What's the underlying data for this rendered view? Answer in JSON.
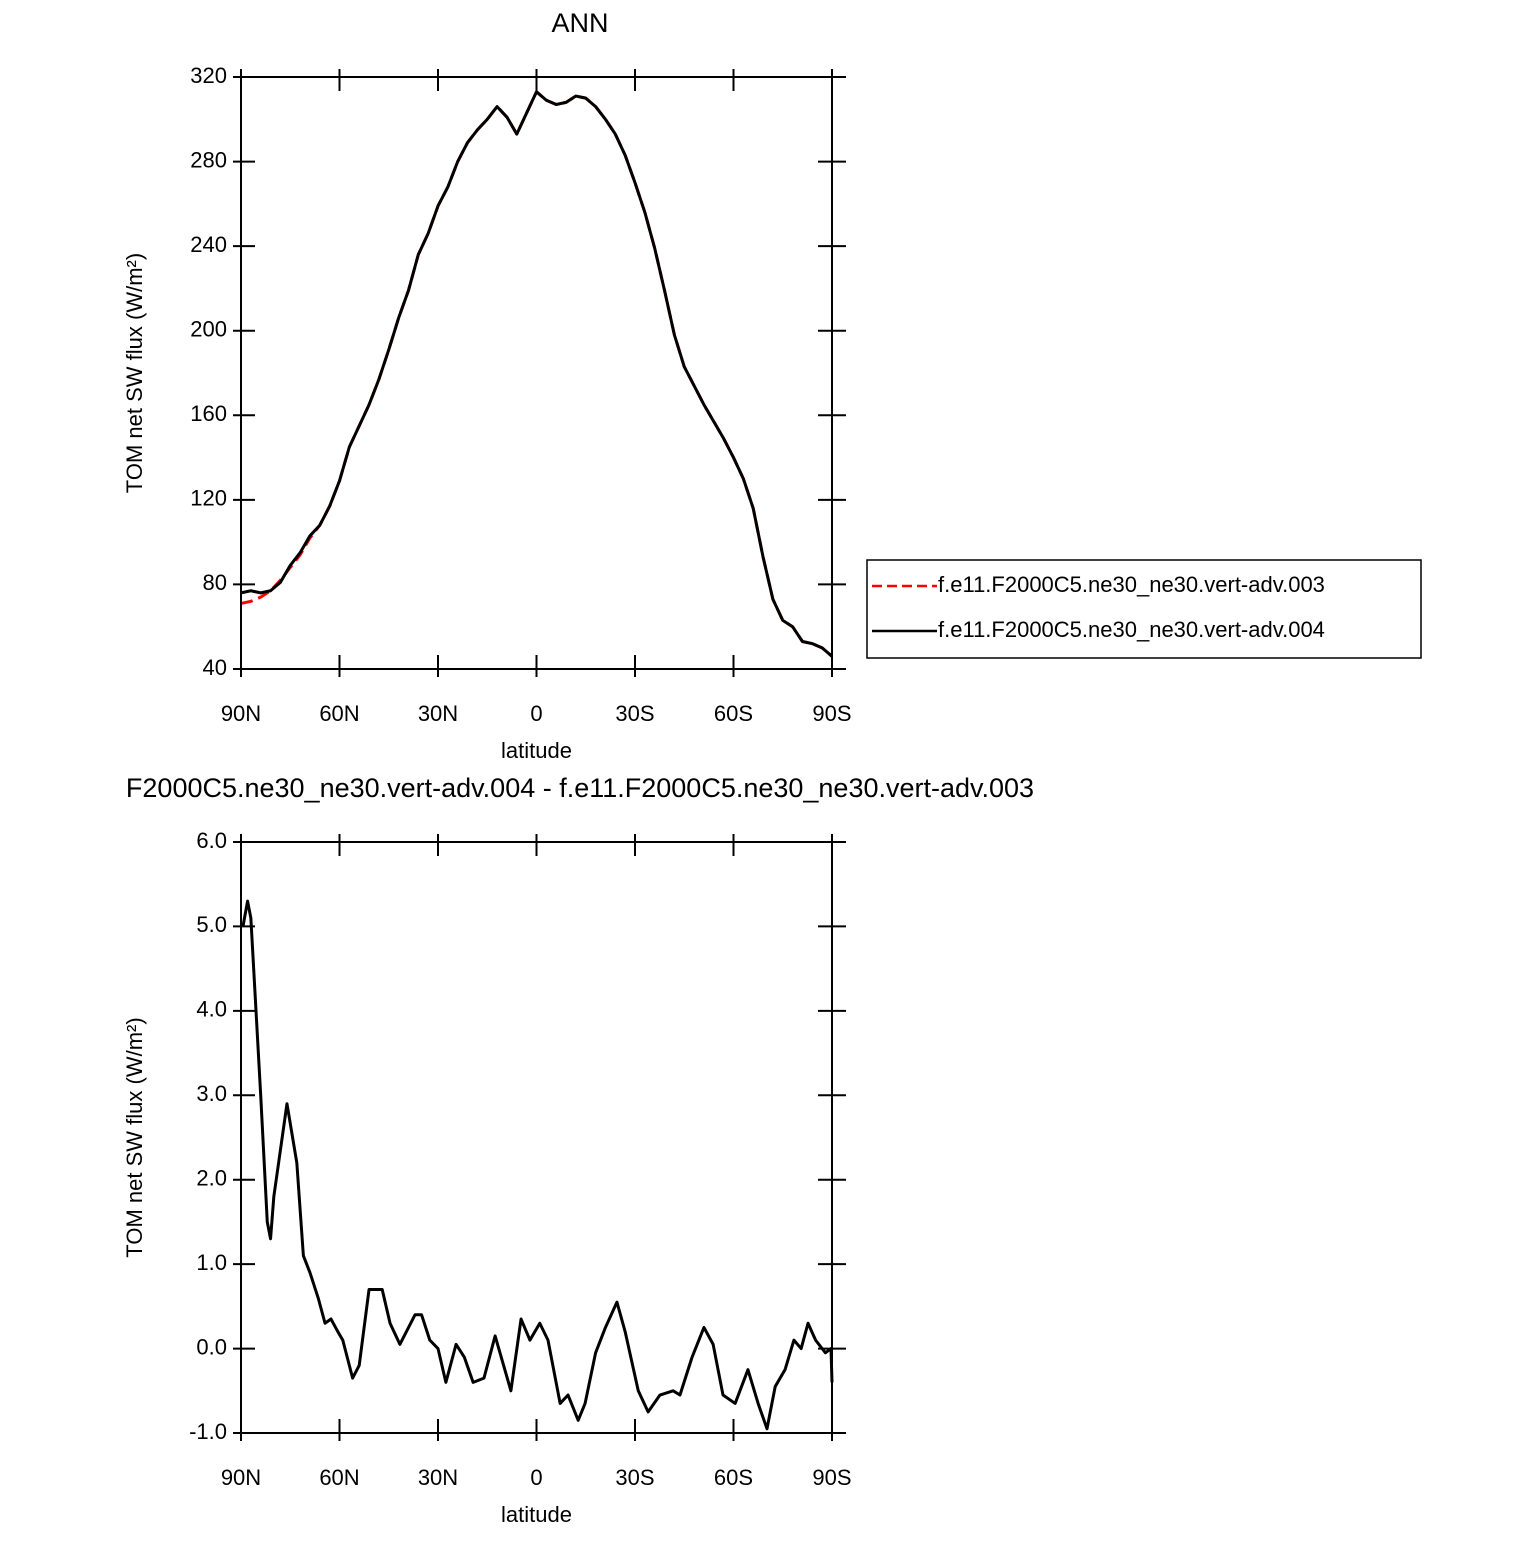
{
  "chart_data": [
    {
      "type": "line",
      "title": "ANN",
      "xlabel": "latitude",
      "ylabel": "TOM net SW flux (W/m²)",
      "x": [
        90,
        87,
        84,
        81,
        78,
        75,
        72,
        69,
        66,
        63,
        60,
        57,
        54,
        51,
        48,
        45,
        42,
        39,
        36,
        33,
        30,
        27,
        24,
        21,
        18,
        15,
        12,
        9,
        6,
        3,
        0,
        -3,
        -6,
        -9,
        -12,
        -15,
        -18,
        -21,
        -24,
        -27,
        -30,
        -33,
        -36,
        -39,
        -42,
        -45,
        -48,
        -51,
        -54,
        -57,
        -60,
        -63,
        -66,
        -69,
        -72,
        -75,
        -78,
        -81,
        -84,
        -87,
        -90
      ],
      "series": [
        {
          "name": "f.e11.F2000C5.ne30_ne30.vert-adv.003",
          "color": "#ff0000",
          "style": "dashed",
          "values": [
            71,
            72,
            74,
            77,
            82,
            88,
            94,
            102,
            108,
            117,
            129,
            145,
            155,
            165,
            177,
            191,
            206,
            219,
            236,
            246,
            259,
            268,
            280,
            289,
            295,
            300,
            306,
            301,
            293,
            303,
            313,
            309,
            307,
            308,
            311,
            310,
            306,
            300,
            293,
            283,
            270,
            256,
            239,
            219,
            198,
            183,
            174,
            165,
            157,
            149,
            140,
            130,
            116,
            93,
            73,
            63,
            60,
            53,
            52,
            50,
            46
          ]
        },
        {
          "name": "f.e11.F2000C5.ne30_ne30.vert-adv.004",
          "color": "#000000",
          "style": "solid",
          "values": [
            76,
            77,
            76,
            77,
            81,
            89,
            95,
            103,
            108,
            117,
            129,
            145,
            155,
            165,
            177,
            191,
            206,
            219,
            236,
            246,
            259,
            268,
            280,
            289,
            295,
            300,
            306,
            301,
            293,
            303,
            313,
            309,
            307,
            308,
            311,
            310,
            306,
            300,
            293,
            283,
            270,
            256,
            239,
            219,
            198,
            183,
            174,
            165,
            157,
            149,
            140,
            130,
            116,
            93,
            73,
            63,
            60,
            53,
            52,
            50,
            46
          ]
        }
      ],
      "xlim": [
        90,
        -90
      ],
      "xticks": [
        {
          "value": 90,
          "label": "90N"
        },
        {
          "value": 60,
          "label": "60N"
        },
        {
          "value": 30,
          "label": "30N"
        },
        0,
        {
          "value": -30,
          "label": "30S"
        },
        {
          "value": -60,
          "label": "60S"
        },
        {
          "value": -90,
          "label": "90S"
        }
      ],
      "ylim": [
        40,
        320
      ],
      "yticks": [
        40,
        80,
        120,
        160,
        200,
        240,
        280,
        320
      ],
      "legend": "right"
    },
    {
      "type": "line",
      "title": "F2000C5.ne30_ne30.vert-adv.004 - f.e11.F2000C5.ne30_ne30.vert-adv.003",
      "xlabel": "latitude",
      "ylabel": "TOM net SW flux (W/m²)",
      "x": [
        89.4,
        88,
        87,
        84,
        82,
        81,
        80,
        76,
        73,
        71,
        69,
        66.5,
        64.4,
        62.6,
        60.5,
        59,
        56,
        54,
        51,
        49,
        47,
        44.6,
        41.6,
        37,
        35,
        32.5,
        30,
        27.6,
        24.5,
        22,
        19.3,
        16,
        12.6,
        7.8,
        4.7,
        2,
        -1,
        -3.5,
        -7.2,
        -9.6,
        -12.7,
        -14.8,
        -18,
        -21,
        -24.5,
        -27,
        -31,
        -34,
        -37.6,
        -41.6,
        -43.7,
        -47.4,
        -51,
        -53.8,
        -56.8,
        -60.5,
        -64.4,
        -67.5,
        -70.2,
        -72.7,
        -75.7,
        -78.4,
        -80.6,
        -82.7,
        -85,
        -88,
        -89.7,
        -90
      ],
      "values": [
        5.0,
        5.3,
        5.1,
        3.0,
        1.5,
        1.3,
        1.8,
        2.9,
        2.2,
        1.1,
        0.9,
        0.6,
        0.3,
        0.35,
        0.2,
        0.1,
        -0.35,
        -0.2,
        0.7,
        0.7,
        0.7,
        0.3,
        0.05,
        0.4,
        0.4,
        0.1,
        0.0,
        -0.4,
        0.05,
        -0.1,
        -0.4,
        -0.35,
        0.15,
        -0.5,
        0.35,
        0.1,
        0.3,
        0.1,
        -0.65,
        -0.55,
        -0.85,
        -0.65,
        -0.05,
        0.25,
        0.55,
        0.2,
        -0.5,
        -0.75,
        -0.55,
        -0.5,
        -0.55,
        -0.1,
        0.25,
        0.05,
        -0.55,
        -0.65,
        -0.25,
        -0.65,
        -0.95,
        -0.45,
        -0.25,
        0.1,
        0.0,
        0.3,
        0.1,
        -0.05,
        0.0,
        -0.4
      ],
      "color": "#000000",
      "xlim": [
        90,
        -90
      ],
      "xticks": [
        {
          "value": 90,
          "label": "90N"
        },
        {
          "value": 60,
          "label": "60N"
        },
        {
          "value": 30,
          "label": "30N"
        },
        0,
        {
          "value": -30,
          "label": "30S"
        },
        {
          "value": -60,
          "label": "60S"
        },
        {
          "value": -90,
          "label": "90S"
        }
      ],
      "ylim": [
        -1,
        6
      ],
      "yticks": [
        {
          "value": -1,
          "label": "-1.0"
        },
        {
          "value": 0,
          "label": "0.0"
        },
        {
          "value": 1,
          "label": "1.0"
        },
        {
          "value": 2,
          "label": "2.0"
        },
        {
          "value": 3,
          "label": "3.0"
        },
        {
          "value": 4,
          "label": "4.0"
        },
        {
          "value": 5,
          "label": "5.0"
        },
        {
          "value": 6,
          "label": "6.0"
        }
      ]
    }
  ]
}
